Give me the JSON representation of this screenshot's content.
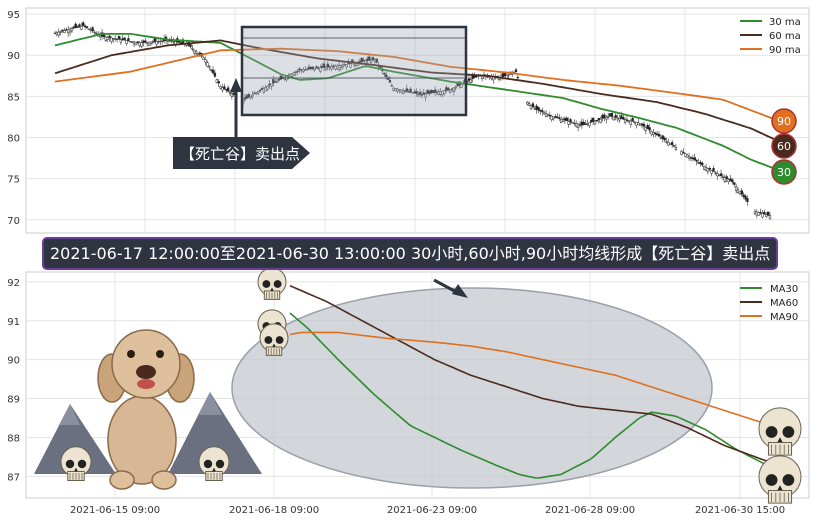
{
  "colors": {
    "ma30": "#2e8b2e",
    "ma60": "#4a2a1e",
    "ma90": "#e07020",
    "badge30": "#2e8b2e",
    "badge60": "#4a2a1e",
    "badge90": "#e07020",
    "annotation": "#2e3440",
    "ellipse": "#c0c4cc"
  },
  "banner_text": "2021-06-17 12:00:00至2021-06-30 13:00:00 30小时,60小时,90小时均线形成【死亡谷】卖出点",
  "callout_text": "【死亡谷】卖出点",
  "badges": {
    "b90": "90",
    "b60": "60",
    "b30": "30"
  },
  "chart_data": [
    {
      "type": "candlestick",
      "y_ticks": [
        "95",
        "90",
        "85",
        "80",
        "75",
        "70"
      ],
      "ylim": [
        69,
        95.5
      ],
      "legend": [
        "30 ma",
        "60 ma",
        "90 ma"
      ],
      "legend_position": "top-right",
      "grid": true,
      "x_count": 310,
      "close_anchors": [
        [
          0,
          92.7
        ],
        [
          15,
          93.6
        ],
        [
          25,
          92.3
        ],
        [
          45,
          91.5
        ],
        [
          60,
          91.8
        ],
        [
          70,
          91.4
        ],
        [
          80,
          89.5
        ],
        [
          88,
          86.2
        ],
        [
          100,
          84.5
        ],
        [
          115,
          86.5
        ],
        [
          130,
          88.2
        ],
        [
          150,
          88.7
        ],
        [
          170,
          89.5
        ],
        [
          180,
          86.0
        ],
        [
          195,
          85.2
        ],
        [
          210,
          85.8
        ],
        [
          225,
          87.5
        ],
        [
          237,
          87.3
        ],
        [
          245,
          88.0
        ],
        [
          250,
          84.5
        ],
        [
          255,
          83.5
        ],
        [
          265,
          82.5
        ],
        [
          280,
          81.5
        ],
        [
          295,
          82.6
        ],
        [
          310,
          81.8
        ],
        [
          330,
          78.8
        ],
        [
          345,
          76.5
        ],
        [
          360,
          74.6
        ],
        [
          372,
          71.0
        ],
        [
          380,
          70.5
        ]
      ],
      "ma30_anchors": [
        [
          0,
          91.2
        ],
        [
          25,
          92.6
        ],
        [
          40,
          92.6
        ],
        [
          60,
          91.9
        ],
        [
          88,
          91.5
        ],
        [
          105,
          89.5
        ],
        [
          120,
          87.7
        ],
        [
          130,
          87.0
        ],
        [
          145,
          87.2
        ],
        [
          165,
          88.7
        ],
        [
          180,
          88.0
        ],
        [
          210,
          86.8
        ],
        [
          240,
          85.8
        ],
        [
          270,
          84.8
        ],
        [
          290,
          83.5
        ],
        [
          310,
          82.4
        ],
        [
          330,
          81.2
        ],
        [
          355,
          79.0
        ],
        [
          370,
          77.3
        ],
        [
          385,
          76.0
        ]
      ],
      "ma60_anchors": [
        [
          0,
          87.8
        ],
        [
          30,
          90.0
        ],
        [
          60,
          91.2
        ],
        [
          88,
          91.8
        ],
        [
          110,
          90.8
        ],
        [
          140,
          89.6
        ],
        [
          170,
          88.8
        ],
        [
          200,
          87.9
        ],
        [
          230,
          87.5
        ],
        [
          260,
          86.5
        ],
        [
          290,
          85.3
        ],
        [
          320,
          84.3
        ],
        [
          345,
          82.9
        ],
        [
          370,
          81.1
        ],
        [
          385,
          79.5
        ]
      ],
      "ma90_anchors": [
        [
          0,
          86.8
        ],
        [
          40,
          88.0
        ],
        [
          88,
          90.6
        ],
        [
          120,
          90.8
        ],
        [
          150,
          90.5
        ],
        [
          180,
          89.8
        ],
        [
          210,
          88.6
        ],
        [
          240,
          87.9
        ],
        [
          270,
          87.0
        ],
        [
          300,
          86.3
        ],
        [
          330,
          85.4
        ],
        [
          355,
          84.6
        ],
        [
          370,
          83.3
        ],
        [
          385,
          82.0
        ]
      ]
    },
    {
      "type": "line",
      "y_ticks": [
        "92",
        "91",
        "90",
        "89",
        "88",
        "87"
      ],
      "ylim": [
        86.7,
        92.1
      ],
      "x_ticks": [
        "2021-06-15 09:00",
        "2021-06-18 09:00",
        "2021-06-23 09:00",
        "2021-06-28 09:00",
        "2021-06-30 15:00"
      ],
      "legend": [
        "MA30",
        "MA60",
        "MA90"
      ],
      "legend_position": "top-right",
      "grid": true,
      "series": [
        {
          "name": "MA30",
          "anchors": [
            [
              0,
              91.2
            ],
            [
              15,
              90.8
            ],
            [
              40,
              90.0
            ],
            [
              70,
              89.1
            ],
            [
              100,
              88.3
            ],
            [
              140,
              87.7
            ],
            [
              170,
              87.3
            ],
            [
              190,
              87.05
            ],
            [
              205,
              86.95
            ],
            [
              225,
              87.05
            ],
            [
              250,
              87.45
            ],
            [
              270,
              88.0
            ],
            [
              290,
              88.5
            ],
            [
              300,
              88.65
            ],
            [
              320,
              88.55
            ],
            [
              345,
              88.2
            ],
            [
              370,
              87.7
            ],
            [
              395,
              87.3
            ],
            [
              415,
              87.2
            ]
          ]
        },
        {
          "name": "MA60",
          "anchors": [
            [
              0,
              91.9
            ],
            [
              30,
              91.5
            ],
            [
              60,
              91.0
            ],
            [
              90,
              90.5
            ],
            [
              120,
              90.0
            ],
            [
              150,
              89.6
            ],
            [
              180,
              89.3
            ],
            [
              210,
              89.0
            ],
            [
              240,
              88.8
            ],
            [
              270,
              88.7
            ],
            [
              300,
              88.6
            ],
            [
              330,
              88.25
            ],
            [
              360,
              87.8
            ],
            [
              395,
              87.4
            ],
            [
              415,
              87.3
            ]
          ]
        },
        {
          "name": "MA90",
          "anchors": [
            [
              0,
              90.65
            ],
            [
              10,
              90.7
            ],
            [
              40,
              90.7
            ],
            [
              80,
              90.55
            ],
            [
              120,
              90.45
            ],
            [
              150,
              90.35
            ],
            [
              180,
              90.2
            ],
            [
              210,
              90.0
            ],
            [
              240,
              89.8
            ],
            [
              270,
              89.6
            ],
            [
              300,
              89.3
            ],
            [
              340,
              88.9
            ],
            [
              370,
              88.6
            ],
            [
              395,
              88.35
            ],
            [
              415,
              88.3
            ]
          ]
        }
      ]
    }
  ]
}
